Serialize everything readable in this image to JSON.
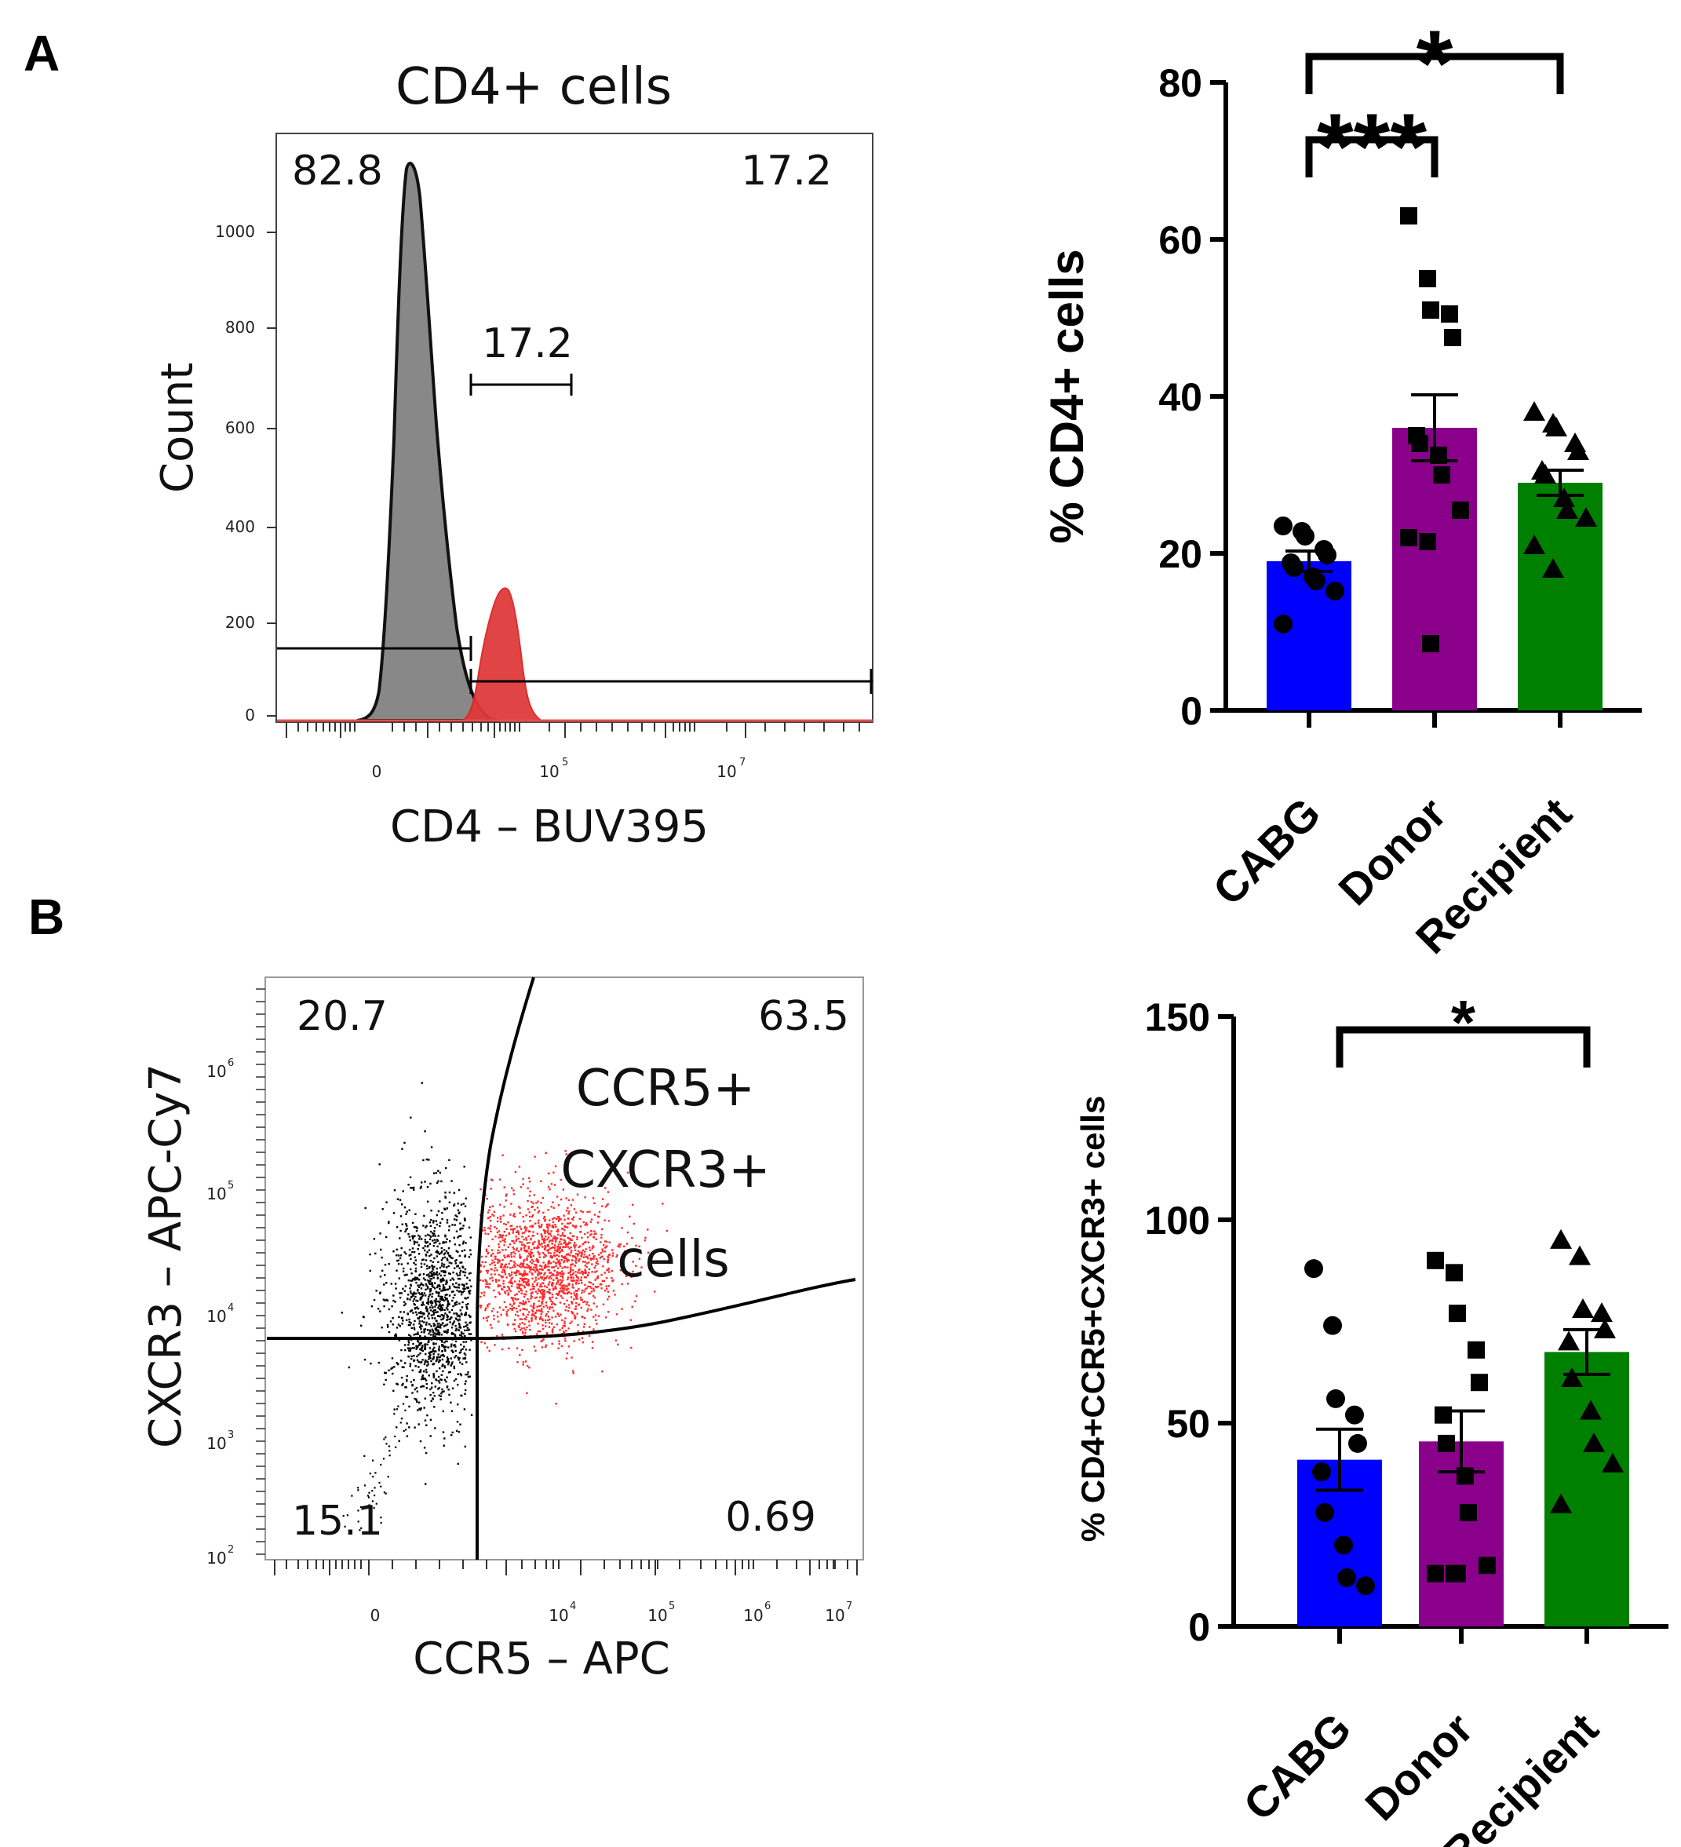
{
  "panels": {
    "a": {
      "letter": "A"
    },
    "b": {
      "letter": "B"
    }
  },
  "histogram": {
    "title": "CD4+ cells",
    "xlabel": "CD4 – BUV395",
    "ylabel": "Count",
    "y_ticks": [
      "0",
      "200",
      "400",
      "600",
      "800",
      "1000"
    ],
    "x_tick_zero": "0",
    "x_tick_base": "10",
    "x_tick_exps": [
      "5",
      "7"
    ],
    "gate_left_pct": "82.8",
    "gate_right_pct": "17.2",
    "marker_pct": "17.2",
    "colors": {
      "negative_fill": "#888888",
      "positive_fill": "#e03a3a"
    }
  },
  "scatter_plot": {
    "xlabel": "CCR5 – APC",
    "ylabel": "CXCR3 – APC-Cy7",
    "x_tick_zero": "0",
    "x_tick_base": "10",
    "x_tick_exps": [
      "4",
      "5",
      "6",
      "7"
    ],
    "y_tick_base": "10",
    "y_tick_exps": [
      "2",
      "3",
      "4",
      "5",
      "6"
    ],
    "q_top_left": "20.7",
    "q_top_right": "63.5",
    "q_bottom_left": "15.1",
    "q_bottom_right": "0.69",
    "gate_label_line1": "CCR5+",
    "gate_label_line2": "CXCR3+",
    "gate_label_line3": "cells",
    "colors": {
      "gated": "#ff2a2a",
      "ungated": "#000000"
    }
  },
  "chart_data": [
    {
      "type": "bar",
      "ylabel": "% CD4+ cells",
      "ylim": [
        0,
        80
      ],
      "yticks": [
        "0",
        "20",
        "40",
        "60",
        "80"
      ],
      "categories": [
        "CABG",
        "Donor",
        "Recipient"
      ],
      "values": [
        19,
        36,
        29
      ],
      "sem": [
        1.3,
        4.2,
        1.6
      ],
      "colors": [
        "#0000ff",
        "#8b008b",
        "#008000"
      ],
      "markers": [
        "circle",
        "square",
        "triangle"
      ],
      "points": [
        [
          23.5,
          22.8,
          22.2,
          20.5,
          19.8,
          18.8,
          18.2,
          17.0,
          16.5,
          15.2,
          11.0
        ],
        [
          63,
          55,
          51,
          50.5,
          47.5,
          35,
          34,
          32.5,
          30,
          25.5,
          22,
          21.5,
          8.5
        ],
        [
          38,
          36.5,
          36,
          34,
          33,
          30.5,
          30,
          27,
          25.5,
          24.5,
          21,
          18
        ]
      ],
      "significance": [
        {
          "from": 0,
          "to": 2,
          "label": "*"
        },
        {
          "from": 0,
          "to": 1,
          "label": "***"
        }
      ]
    },
    {
      "type": "bar",
      "ylabel": "% CD4+CCR5+CXCR3+ cells",
      "ylim": [
        0,
        150
      ],
      "yticks": [
        "0",
        "50",
        "100",
        "150"
      ],
      "categories": [
        "CABG",
        "Donor",
        "Recipient"
      ],
      "values": [
        41,
        45.5,
        67.5
      ],
      "sem": [
        7.5,
        7.5,
        5.5
      ],
      "colors": [
        "#0000ff",
        "#8b008b",
        "#008000"
      ],
      "markers": [
        "circle",
        "square",
        "triangle"
      ],
      "points": [
        [
          88,
          74,
          56,
          52,
          45,
          38,
          28,
          20,
          12,
          10
        ],
        [
          90,
          87,
          77,
          68,
          60,
          52,
          45,
          37,
          28,
          15,
          13,
          13,
          13
        ],
        [
          95,
          91,
          78,
          77,
          73,
          70,
          61,
          53,
          45,
          40,
          30
        ]
      ],
      "significance": [
        {
          "from": 0,
          "to": 2,
          "label": "*"
        }
      ]
    }
  ]
}
